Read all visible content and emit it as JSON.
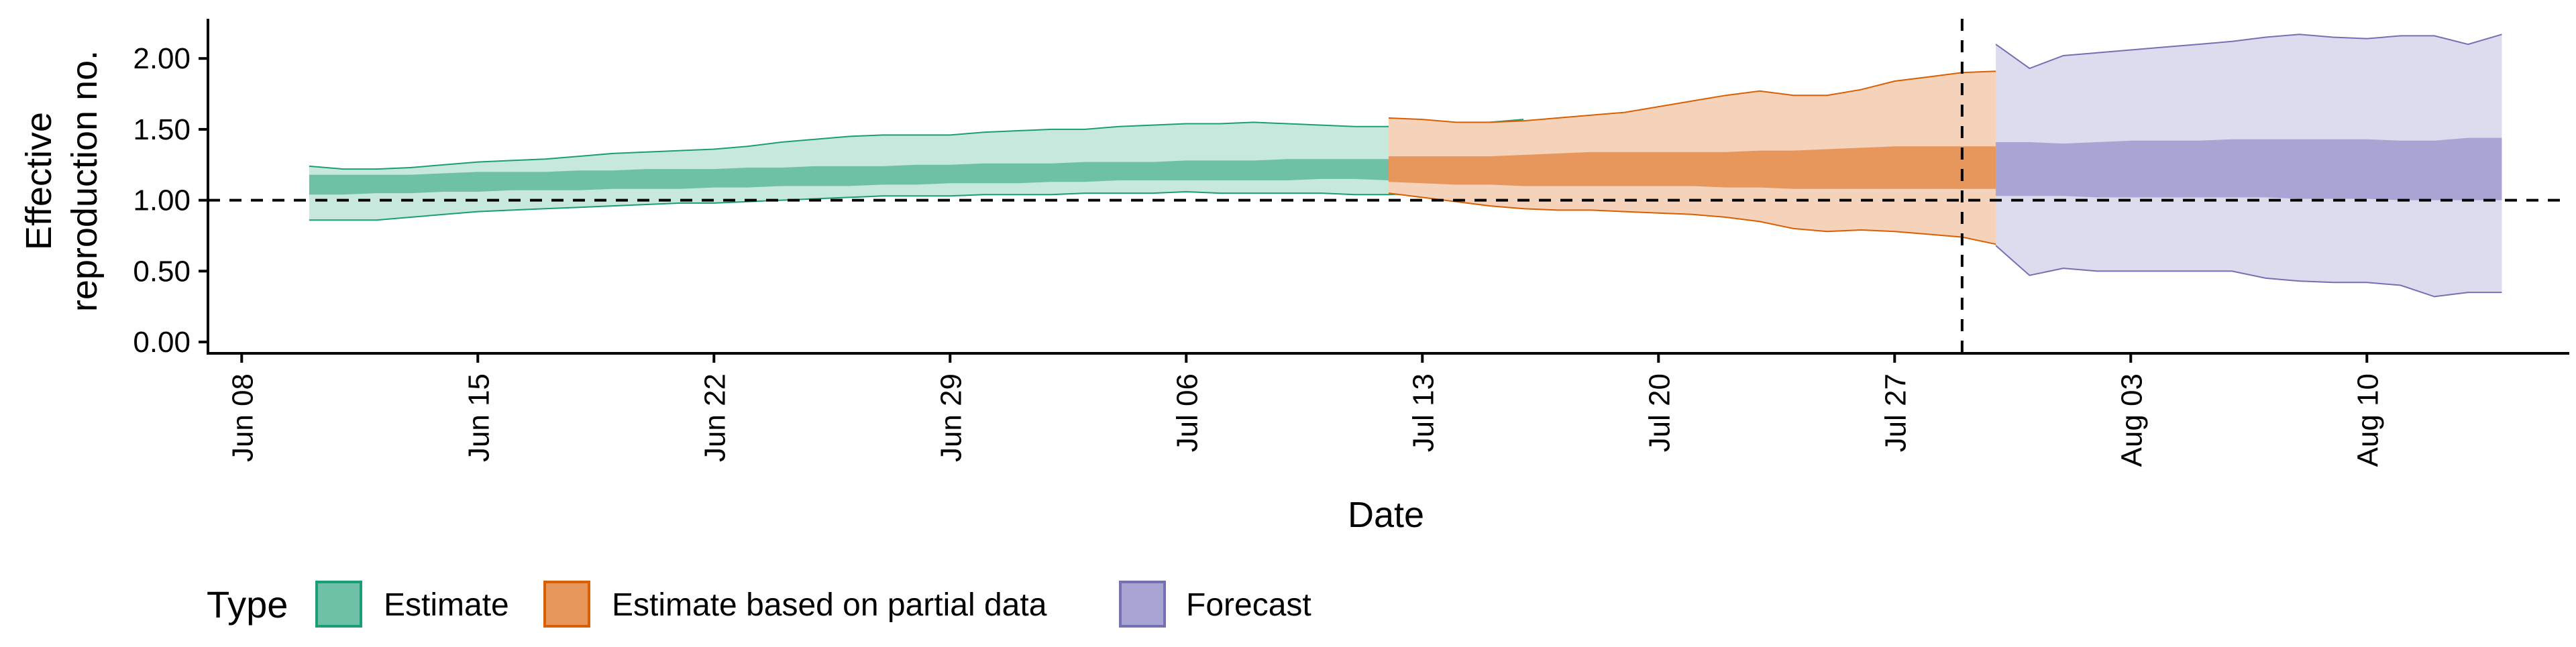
{
  "chart_data": {
    "type": "area",
    "title": "",
    "xlabel": "Date",
    "ylabel_lines": [
      "Effective",
      "reproduction no."
    ],
    "x_tick_labels": [
      "Jun 08",
      "Jun 15",
      "Jun 22",
      "Jun 29",
      "Jul 06",
      "Jul 13",
      "Jul 20",
      "Jul 27",
      "Aug 03",
      "Aug 10"
    ],
    "x_tick_dates": [
      "2020-06-08",
      "2020-06-15",
      "2020-06-22",
      "2020-06-29",
      "2020-07-06",
      "2020-07-13",
      "2020-07-20",
      "2020-07-27",
      "2020-08-03",
      "2020-08-10"
    ],
    "y_tick_labels": [
      "0.00",
      "0.50",
      "1.00",
      "1.50",
      "2.00"
    ],
    "y_tick_values": [
      0,
      0.5,
      1.0,
      1.5,
      2.0
    ],
    "xlim": [
      "2020-06-07",
      "2020-08-16"
    ],
    "ylim": [
      -0.08,
      2.28
    ],
    "reference_line_y": 1.0,
    "forecast_start_line_date": "2020-07-29",
    "legend": {
      "title": "Type",
      "position": "bottom",
      "entries": [
        "Estimate",
        "Estimate based on partial data",
        "Forecast"
      ]
    },
    "colors": {
      "Estimate": {
        "outer": "#c7e8dd",
        "inner": "#6fc1a6",
        "line": "#1b9e77"
      },
      "Estimate based on partial data": {
        "outer": "#f5d3bb",
        "inner": "#e8975c",
        "line": "#d95f02"
      },
      "Forecast": {
        "outer": "#dcdcee",
        "inner": "#a8a4d3",
        "line": "#7570b3"
      }
    },
    "series": [
      {
        "name": "Estimate",
        "start_date": "2020-06-10",
        "outer_upper": [
          1.24,
          1.22,
          1.22,
          1.23,
          1.25,
          1.27,
          1.28,
          1.29,
          1.31,
          1.33,
          1.34,
          1.35,
          1.36,
          1.38,
          1.41,
          1.43,
          1.45,
          1.46,
          1.46,
          1.46,
          1.48,
          1.49,
          1.5,
          1.5,
          1.52,
          1.53,
          1.54,
          1.54,
          1.55,
          1.54,
          1.53,
          1.52,
          1.52,
          1.53,
          1.54,
          1.55,
          1.57
        ],
        "inner_upper": [
          1.18,
          1.18,
          1.18,
          1.18,
          1.19,
          1.2,
          1.2,
          1.2,
          1.21,
          1.21,
          1.22,
          1.22,
          1.22,
          1.23,
          1.23,
          1.24,
          1.24,
          1.24,
          1.25,
          1.25,
          1.26,
          1.26,
          1.26,
          1.27,
          1.27,
          1.27,
          1.28,
          1.28,
          1.28,
          1.29,
          1.29,
          1.29,
          1.29,
          1.29,
          1.29,
          1.29,
          1.3
        ],
        "inner_lower": [
          1.04,
          1.04,
          1.05,
          1.05,
          1.06,
          1.06,
          1.07,
          1.07,
          1.07,
          1.08,
          1.08,
          1.08,
          1.09,
          1.09,
          1.1,
          1.1,
          1.1,
          1.11,
          1.11,
          1.12,
          1.12,
          1.12,
          1.13,
          1.13,
          1.14,
          1.14,
          1.14,
          1.14,
          1.14,
          1.14,
          1.15,
          1.15,
          1.14,
          1.14,
          1.14,
          1.14,
          1.15
        ],
        "outer_lower": [
          0.86,
          0.86,
          0.86,
          0.88,
          0.9,
          0.92,
          0.93,
          0.94,
          0.95,
          0.96,
          0.97,
          0.98,
          0.98,
          0.99,
          1.0,
          1.01,
          1.02,
          1.03,
          1.03,
          1.03,
          1.04,
          1.04,
          1.04,
          1.05,
          1.05,
          1.05,
          1.06,
          1.05,
          1.05,
          1.05,
          1.05,
          1.04,
          1.04,
          1.05,
          1.05,
          1.06,
          1.07
        ]
      },
      {
        "name": "Estimate based on partial data",
        "start_date": "2020-07-12",
        "outer_upper": [
          1.58,
          1.57,
          1.55,
          1.55,
          1.56,
          1.58,
          1.6,
          1.62,
          1.66,
          1.7,
          1.74,
          1.77,
          1.74,
          1.74,
          1.78,
          1.84,
          1.87,
          1.9,
          1.91,
          1.89,
          1.9,
          1.99
        ],
        "inner_upper": [
          1.31,
          1.31,
          1.31,
          1.31,
          1.32,
          1.33,
          1.34,
          1.34,
          1.34,
          1.34,
          1.34,
          1.35,
          1.35,
          1.36,
          1.37,
          1.38,
          1.38,
          1.38,
          1.38,
          1.37,
          1.36,
          1.43
        ],
        "inner_lower": [
          1.13,
          1.12,
          1.11,
          1.11,
          1.1,
          1.1,
          1.1,
          1.1,
          1.1,
          1.1,
          1.09,
          1.09,
          1.08,
          1.08,
          1.08,
          1.08,
          1.08,
          1.08,
          1.08,
          1.08,
          1.07,
          1.07
        ],
        "outer_lower": [
          1.05,
          1.02,
          0.99,
          0.96,
          0.94,
          0.93,
          0.93,
          0.92,
          0.91,
          0.9,
          0.88,
          0.85,
          0.8,
          0.78,
          0.79,
          0.78,
          0.76,
          0.74,
          0.69,
          0.66,
          0.62,
          0.64
        ]
      },
      {
        "name": "Forecast",
        "start_date": "2020-07-30",
        "outer_upper": [
          2.1,
          1.93,
          2.02,
          2.04,
          2.06,
          2.08,
          2.1,
          2.12,
          2.15,
          2.17,
          2.15,
          2.14,
          2.16,
          2.16,
          2.1,
          2.17
        ],
        "inner_upper": [
          1.41,
          1.41,
          1.4,
          1.41,
          1.42,
          1.42,
          1.42,
          1.43,
          1.43,
          1.43,
          1.43,
          1.43,
          1.42,
          1.42,
          1.44,
          1.44
        ],
        "inner_lower": [
          1.03,
          1.03,
          1.03,
          1.02,
          1.02,
          1.02,
          1.02,
          1.02,
          1.02,
          1.01,
          1.01,
          1.01,
          1.0,
          1.0,
          1.0,
          1.0
        ],
        "outer_lower": [
          0.68,
          0.47,
          0.52,
          0.5,
          0.5,
          0.5,
          0.5,
          0.5,
          0.45,
          0.43,
          0.42,
          0.42,
          0.4,
          0.32,
          0.35,
          0.35
        ]
      }
    ]
  }
}
